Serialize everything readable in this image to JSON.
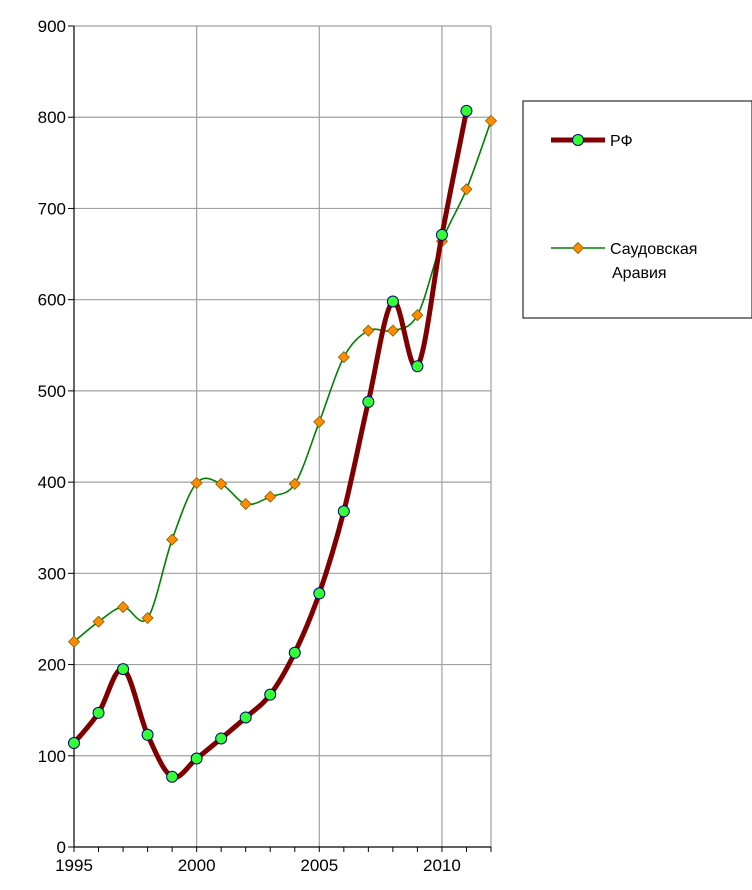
{
  "chart_data": {
    "type": "line",
    "title": "",
    "xlabel": "",
    "ylabel": "",
    "xlim": [
      1995,
      2012
    ],
    "ylim": [
      0,
      900
    ],
    "x_ticks": [
      1995,
      2000,
      2005,
      2010
    ],
    "y_ticks": [
      0,
      100,
      200,
      300,
      400,
      500,
      600,
      700,
      800,
      900
    ],
    "grid": true,
    "legend": "right",
    "series": [
      {
        "name": "РФ",
        "color": "#800000",
        "marker": "circle",
        "marker_color": "#33ff33",
        "x": [
          1995,
          1996,
          1997,
          1998,
          1999,
          2000,
          2001,
          2002,
          2003,
          2004,
          2005,
          2006,
          2007,
          2008,
          2009,
          2010,
          2011
        ],
        "values": [
          114,
          147,
          195,
          123,
          77,
          97,
          119,
          142,
          167,
          213,
          278,
          368,
          488,
          598,
          527,
          671,
          807
        ]
      },
      {
        "name": "Саудовская Аравия",
        "name_lines": [
          "Саудовская",
          "Аравия"
        ],
        "color": "#008000",
        "marker": "diamond",
        "marker_color": "#ff8c00",
        "x": [
          1995,
          1996,
          1997,
          1998,
          1999,
          2000,
          2001,
          2002,
          2003,
          2004,
          2005,
          2006,
          2007,
          2008,
          2009,
          2010,
          2011,
          2012
        ],
        "values": [
          225,
          247,
          263,
          251,
          337,
          399,
          398,
          376,
          384,
          398,
          466,
          537,
          566,
          566,
          583,
          664,
          721,
          796
        ]
      }
    ]
  }
}
